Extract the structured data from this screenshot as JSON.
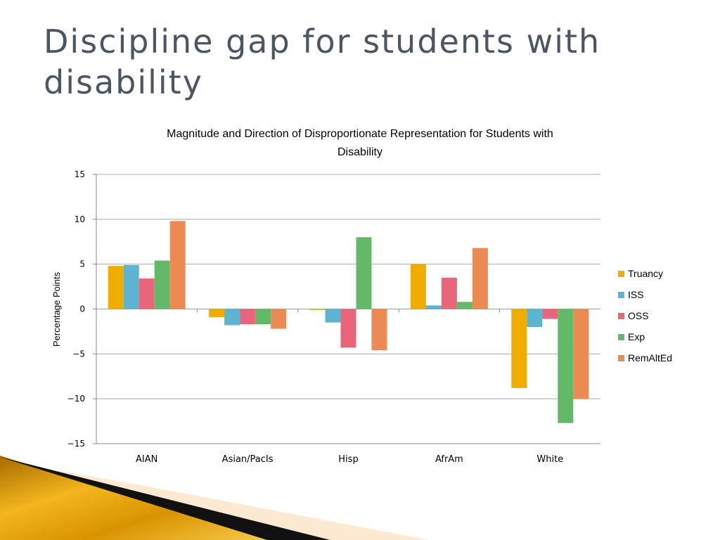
{
  "slide": {
    "title": "Discipline gap for students with disability"
  },
  "chart_data": {
    "type": "bar",
    "title_lines": [
      "Magnitude and Direction of Disproportionate Representation for Students with",
      "Disability"
    ],
    "ylabel": "Percentage Points",
    "xlabel": "",
    "ylim": [
      -15,
      15
    ],
    "yticks": [
      15,
      10,
      5,
      0,
      -5,
      -10,
      -15
    ],
    "ytick_labels": [
      "15",
      "10",
      "5",
      "0",
      "−5",
      "−10",
      "−15"
    ],
    "categories": [
      "AIAN",
      "Asian/PacIs",
      "Hisp",
      "AfrAm",
      "White"
    ],
    "series": [
      {
        "name": "Truancy",
        "color": "#f0ad00",
        "values": [
          4.8,
          -0.9,
          -0.1,
          5.0,
          -8.8
        ]
      },
      {
        "name": "ISS",
        "color": "#5bb4d0",
        "values": [
          4.9,
          -1.8,
          -1.5,
          0.4,
          -2.0
        ]
      },
      {
        "name": "OSS",
        "color": "#e8667a",
        "values": [
          3.4,
          -1.7,
          -4.3,
          3.5,
          -1.1
        ]
      },
      {
        "name": "Exp",
        "color": "#63b968",
        "values": [
          5.4,
          -1.7,
          8.0,
          0.8,
          -12.7
        ]
      },
      {
        "name": "RemAltEd",
        "color": "#ec8a53",
        "values": [
          9.8,
          -2.2,
          -4.6,
          6.8,
          -10.0
        ]
      }
    ],
    "grid": true,
    "legend_position": "right"
  }
}
